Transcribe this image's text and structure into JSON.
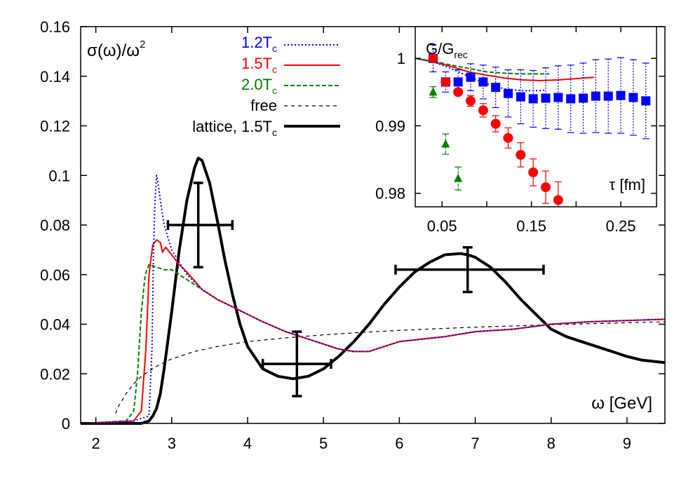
{
  "chart_data": [
    {
      "type": "line",
      "ylabel": "σ(ω)/ω²",
      "ylabel_parts": {
        "sigma": "σ(ω)/ω",
        "sup": "2"
      },
      "xlabel": "ω [GeV]",
      "xlim": [
        1.8,
        9.5
      ],
      "ylim": [
        0,
        0.16
      ],
      "xticks": [
        "2",
        "3",
        "4",
        "5",
        "6",
        "7",
        "8",
        "9"
      ],
      "yticks": [
        "0",
        "0.02",
        "0.04",
        "0.06",
        "0.08",
        "0.1",
        "0.12",
        "0.14",
        "0.16"
      ],
      "grid": false,
      "legend_position": "top-left",
      "series": [
        {
          "name": "1.2Tc",
          "label_main": "1.2T",
          "label_sub": "c",
          "color": "#0000ff",
          "style": "dotted",
          "x": [
            1.8,
            2.5,
            2.7,
            2.74,
            2.76,
            2.78,
            2.8,
            2.82,
            2.85,
            2.9,
            2.95,
            3.0,
            3.1,
            3.2,
            3.4,
            3.6,
            3.8,
            4.0,
            4.2,
            4.5,
            4.8,
            5.0,
            5.2,
            5.4,
            5.6,
            5.8,
            6.0,
            6.3,
            6.6,
            7.0,
            7.5,
            8.0,
            8.5,
            9.0,
            9.5
          ],
          "y": [
            0,
            0.001,
            0.003,
            0.03,
            0.07,
            0.09,
            0.1,
            0.097,
            0.09,
            0.08,
            0.075,
            0.07,
            0.065,
            0.06,
            0.054,
            0.05,
            0.047,
            0.044,
            0.041,
            0.037,
            0.034,
            0.032,
            0.03,
            0.029,
            0.029,
            0.031,
            0.033,
            0.034,
            0.035,
            0.037,
            0.038,
            0.04,
            0.041,
            0.0415,
            0.042
          ]
        },
        {
          "name": "1.5Tc",
          "label_main": "1.5T",
          "label_sub": "c",
          "color": "#ff0000",
          "style": "solid",
          "x": [
            1.8,
            2.5,
            2.6,
            2.66,
            2.7,
            2.75,
            2.8,
            2.85,
            2.88,
            2.92,
            3.0,
            3.1,
            3.2,
            3.4,
            3.6,
            3.8,
            4.0,
            4.2,
            4.5,
            4.8,
            5.0,
            5.2,
            5.4,
            5.6,
            5.8,
            6.0,
            6.3,
            6.6,
            7.0,
            7.5,
            8.0,
            8.5,
            9.0,
            9.5
          ],
          "y": [
            0,
            0.001,
            0.005,
            0.03,
            0.06,
            0.072,
            0.074,
            0.073,
            0.069,
            0.071,
            0.068,
            0.064,
            0.061,
            0.054,
            0.05,
            0.047,
            0.044,
            0.041,
            0.037,
            0.034,
            0.032,
            0.03,
            0.029,
            0.029,
            0.031,
            0.033,
            0.034,
            0.035,
            0.037,
            0.038,
            0.04,
            0.041,
            0.0415,
            0.042
          ]
        },
        {
          "name": "2.0Tc",
          "label_main": "2.0T",
          "label_sub": "c",
          "color": "#008000",
          "style": "dashed",
          "x": [
            1.8,
            2.4,
            2.5,
            2.55,
            2.6,
            2.65,
            2.7,
            2.8,
            2.9,
            3.0,
            3.1,
            3.2,
            3.4,
            3.6,
            3.8,
            4.0,
            4.2,
            4.5,
            4.8,
            5.0,
            5.2,
            5.4,
            5.6,
            5.8,
            6.0,
            6.3,
            6.6,
            7.0,
            7.5,
            8.0,
            8.5,
            9.0,
            9.5
          ],
          "y": [
            0,
            0.001,
            0.005,
            0.02,
            0.045,
            0.06,
            0.064,
            0.063,
            0.062,
            0.062,
            0.06,
            0.058,
            0.054,
            0.05,
            0.047,
            0.044,
            0.041,
            0.037,
            0.034,
            0.032,
            0.03,
            0.029,
            0.029,
            0.031,
            0.033,
            0.034,
            0.035,
            0.037,
            0.038,
            0.04,
            0.041,
            0.0415,
            0.042
          ]
        },
        {
          "name": "free",
          "label_main": "free",
          "label_sub": "",
          "color": "#000000",
          "style": "thin-dashed",
          "x": [
            2.26,
            2.3,
            2.4,
            2.5,
            2.6,
            2.8,
            3.0,
            3.3,
            3.6,
            4.0,
            4.5,
            5.0,
            5.5,
            6.0,
            6.5,
            7.0,
            7.5,
            8.0,
            8.5,
            9.0,
            9.5
          ],
          "y": [
            0.004,
            0.007,
            0.012,
            0.016,
            0.019,
            0.023,
            0.026,
            0.029,
            0.031,
            0.033,
            0.0345,
            0.0357,
            0.0367,
            0.0375,
            0.0382,
            0.0388,
            0.0393,
            0.0398,
            0.0402,
            0.0406,
            0.041
          ]
        },
        {
          "name": "lattice, 1.5Tc",
          "label_main": "lattice, 1.5T",
          "label_sub": "c",
          "color": "#000000",
          "style": "thick",
          "x": [
            1.8,
            2.6,
            2.7,
            2.75,
            2.8,
            2.85,
            2.9,
            3.0,
            3.1,
            3.2,
            3.3,
            3.35,
            3.4,
            3.5,
            3.6,
            3.7,
            3.8,
            3.9,
            4.0,
            4.2,
            4.4,
            4.6,
            4.8,
            5.0,
            5.2,
            5.4,
            5.6,
            5.8,
            6.0,
            6.2,
            6.4,
            6.6,
            6.8,
            6.9,
            7.0,
            7.2,
            7.4,
            7.6,
            7.8,
            8.0,
            8.2,
            8.4,
            8.6,
            8.8,
            9.0,
            9.2,
            9.5
          ],
          "y": [
            0,
            0,
            0.001,
            0.003,
            0.006,
            0.012,
            0.022,
            0.045,
            0.07,
            0.09,
            0.103,
            0.107,
            0.106,
            0.097,
            0.082,
            0.066,
            0.052,
            0.04,
            0.031,
            0.022,
            0.019,
            0.018,
            0.019,
            0.022,
            0.027,
            0.033,
            0.04,
            0.048,
            0.055,
            0.061,
            0.065,
            0.068,
            0.0685,
            0.068,
            0.067,
            0.063,
            0.057,
            0.05,
            0.044,
            0.038,
            0.035,
            0.033,
            0.031,
            0.029,
            0.027,
            0.0255,
            0.0245
          ]
        }
      ],
      "error_crosses": [
        {
          "x": 3.35,
          "y": 0.08,
          "x_err": [
            2.95,
            3.8
          ],
          "y_err": [
            0.063,
            0.097
          ]
        },
        {
          "x": 4.65,
          "y": 0.024,
          "x_err": [
            4.2,
            5.1
          ],
          "y_err": [
            0.011,
            0.037
          ]
        },
        {
          "x": 6.9,
          "y": 0.062,
          "x_err": [
            5.95,
            7.9
          ],
          "y_err": [
            0.053,
            0.071
          ]
        }
      ]
    },
    {
      "type": "scatter",
      "title": "G/Grec",
      "title_parts": {
        "main": "G/G",
        "sub": "rec"
      },
      "xlabel": "τ [fm]",
      "xlim": [
        0.02,
        0.29
      ],
      "ylim": [
        0.978,
        1.0047
      ],
      "xticks": [
        "0.05",
        "0.15",
        "0.25"
      ],
      "xtick_values": [
        0.05,
        0.15,
        0.25
      ],
      "xminor_values": [
        0.1,
        0.2
      ],
      "yticks": [
        "1",
        "0.99",
        "0.98"
      ],
      "ytick_values": [
        1.0,
        0.99,
        0.98
      ],
      "series": [
        {
          "name": "1.2Tc",
          "color": "#0000ff",
          "marker": "square",
          "x": [
            0.04,
            0.054,
            0.068,
            0.082,
            0.096,
            0.11,
            0.124,
            0.138,
            0.152,
            0.166,
            0.18,
            0.194,
            0.208,
            0.222,
            0.236,
            0.25,
            0.264,
            0.278
          ],
          "y": [
            1.0,
            0.9965,
            0.9965,
            0.9972,
            0.9965,
            0.9957,
            0.9948,
            0.9943,
            0.994,
            0.9941,
            0.9942,
            0.994,
            0.9941,
            0.9944,
            0.9944,
            0.9945,
            0.9942,
            0.9937
          ],
          "err": [
            0.002,
            0.0015,
            0.0018,
            0.002,
            0.0025,
            0.003,
            0.0035,
            0.004,
            0.0042,
            0.0045,
            0.0047,
            0.005,
            0.0052,
            0.0054,
            0.0055,
            0.0056,
            0.0056,
            0.0056
          ]
        },
        {
          "name": "1.5Tc",
          "color": "#ff0000",
          "marker": "circle",
          "x": [
            0.04,
            0.054,
            0.068,
            0.082,
            0.096,
            0.11,
            0.124,
            0.138,
            0.152,
            0.166,
            0.18
          ],
          "y": [
            1.0,
            0.9965,
            0.995,
            0.9937,
            0.9923,
            0.9903,
            0.9882,
            0.9857,
            0.9831,
            0.9809,
            0.979
          ],
          "err": [
            0.0005,
            0.0005,
            0.0005,
            0.0008,
            0.001,
            0.0012,
            0.0015,
            0.0018,
            0.002,
            0.0024,
            0.0027
          ]
        },
        {
          "name": "2.0Tc",
          "color": "#008000",
          "marker": "triangle",
          "x": [
            0.04,
            0.054,
            0.068
          ],
          "y": [
            0.995,
            0.9873,
            0.9822
          ],
          "err": [
            0.0008,
            0.0015,
            0.0017
          ]
        },
        {
          "name": "1.5Tc model",
          "color": "#ff0000",
          "style": "solid",
          "x": [
            0.02,
            0.04,
            0.06,
            0.08,
            0.1,
            0.12,
            0.14,
            0.16,
            0.18,
            0.2,
            0.22
          ],
          "y": [
            1.0,
            0.9995,
            0.9988,
            0.998,
            0.9975,
            0.9971,
            0.9968,
            0.9967,
            0.9968,
            0.997,
            0.9972
          ]
        },
        {
          "name": "1.2Tc model",
          "color": "#0000ff",
          "style": "dotted",
          "x": [
            0.02,
            0.04,
            0.06,
            0.08,
            0.1,
            0.12,
            0.14,
            0.16,
            0.165
          ],
          "y": [
            1.0,
            0.9995,
            0.9985,
            0.9973,
            0.9962,
            0.9955,
            0.9952,
            0.9952,
            0.9953
          ]
        },
        {
          "name": "2.0Tc model",
          "color": "#008000",
          "style": "dashed",
          "x": [
            0.02,
            0.04,
            0.06,
            0.08,
            0.1,
            0.12,
            0.14,
            0.16,
            0.17
          ],
          "y": [
            1.0,
            0.9996,
            0.999,
            0.9985,
            0.998,
            0.9978,
            0.9977,
            0.9977,
            0.9977
          ]
        }
      ]
    }
  ]
}
